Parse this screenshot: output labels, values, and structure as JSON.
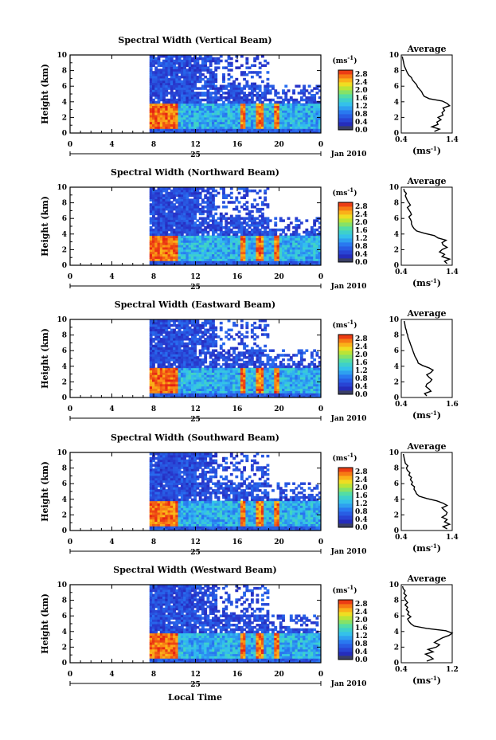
{
  "figure": {
    "bottom_xlabel": "Local Time",
    "chart_data": [
      {
        "type": "heatmap",
        "title": "Spectral Width (Vertical Beam)",
        "ylabel": "Height (km)",
        "y_ticks": [
          "0",
          "2",
          "4",
          "6",
          "8",
          "10"
        ],
        "x_ticks": [
          "0",
          "4",
          "8",
          "12",
          "16",
          "20",
          "0"
        ],
        "date_day": "25",
        "date_month": "Jan 2010",
        "colorbar_unit": "(ms-1)",
        "colorbar_ticks": [
          "0.0",
          "0.4",
          "0.8",
          "1.2",
          "1.6",
          "2.0",
          "2.4",
          "2.8"
        ],
        "colorbar_range": [
          0.0,
          3.0
        ],
        "avg_title": "Average",
        "avg_xlabel": "(ms-1)",
        "avg_xticks": [
          "0.4",
          "1.4"
        ],
        "avg_xlim": [
          0.4,
          1.4
        ],
        "avg_height": [
          0.2,
          0.5,
          0.8,
          1.1,
          1.4,
          1.7,
          2.0,
          2.3,
          2.6,
          2.9,
          3.2,
          3.5,
          3.8,
          4.1,
          4.4,
          4.7,
          5.0,
          5.3,
          5.6,
          5.9,
          6.2,
          6.5,
          6.8,
          7.1,
          7.4,
          7.7,
          8.0,
          8.3,
          8.6,
          8.9,
          9.2,
          9.5,
          9.8
        ],
        "avg_width": [
          1.05,
          1.15,
          1.0,
          1.12,
          1.1,
          1.18,
          1.12,
          1.22,
          1.2,
          1.25,
          1.22,
          1.35,
          1.3,
          1.2,
          0.95,
          0.85,
          0.82,
          0.8,
          0.76,
          0.72,
          0.7,
          0.66,
          0.62,
          0.6,
          0.55,
          0.52,
          0.5,
          0.48,
          0.46,
          0.45,
          0.44,
          0.43,
          0.42
        ]
      },
      {
        "type": "heatmap",
        "title": "Spectral Width (Northward Beam)",
        "ylabel": "Height (km)",
        "y_ticks": [
          "0",
          "2",
          "4",
          "6",
          "8",
          "10"
        ],
        "x_ticks": [
          "0",
          "4",
          "8",
          "12",
          "16",
          "20",
          "0"
        ],
        "date_day": "25",
        "date_month": "Jan 2010",
        "colorbar_unit": "(ms-1)",
        "colorbar_ticks": [
          "0.0",
          "0.4",
          "0.8",
          "1.2",
          "1.6",
          "2.0",
          "2.4",
          "2.8"
        ],
        "colorbar_range": [
          0.0,
          3.0
        ],
        "avg_title": "Average",
        "avg_xlabel": "(ms-1)",
        "avg_xticks": [
          "0.4",
          "1.4"
        ],
        "avg_xlim": [
          0.4,
          1.4
        ],
        "avg_height": [
          0.2,
          0.5,
          0.8,
          1.1,
          1.4,
          1.7,
          2.0,
          2.3,
          2.6,
          2.9,
          3.2,
          3.5,
          3.8,
          4.1,
          4.4,
          4.7,
          5.0,
          5.3,
          5.6,
          5.9,
          6.2,
          6.5,
          6.8,
          7.1,
          7.4,
          7.7,
          8.0,
          8.3,
          8.6,
          8.9,
          9.2,
          9.5,
          9.8
        ],
        "avg_width": [
          1.3,
          1.25,
          1.35,
          1.2,
          1.25,
          1.15,
          1.2,
          1.3,
          1.22,
          1.2,
          1.28,
          1.12,
          1.05,
          0.85,
          0.7,
          0.65,
          0.62,
          0.6,
          0.6,
          0.58,
          0.55,
          0.6,
          0.58,
          0.55,
          0.52,
          0.58,
          0.55,
          0.52,
          0.5,
          0.48,
          0.5,
          0.46,
          0.45
        ]
      },
      {
        "type": "heatmap",
        "title": "Spectral Width (Eastward Beam)",
        "ylabel": "Height (km)",
        "y_ticks": [
          "0",
          "2",
          "4",
          "6",
          "8",
          "10"
        ],
        "x_ticks": [
          "0",
          "4",
          "8",
          "12",
          "16",
          "20",
          "0"
        ],
        "date_day": "25",
        "date_month": "Jan 2010",
        "colorbar_unit": "(ms-1)",
        "colorbar_ticks": [
          "0.0",
          "0.4",
          "0.8",
          "1.2",
          "1.6",
          "2.0",
          "2.4",
          "2.8"
        ],
        "colorbar_range": [
          0.0,
          3.0
        ],
        "avg_title": "Average",
        "avg_xlabel": "(ms-1)",
        "avg_xticks": [
          "0.4",
          "1.6"
        ],
        "avg_xlim": [
          0.4,
          1.6
        ],
        "avg_height": [
          0.2,
          0.5,
          0.8,
          1.1,
          1.4,
          1.7,
          2.0,
          2.3,
          2.6,
          2.9,
          3.2,
          3.5,
          3.8,
          4.1,
          4.4,
          4.7,
          5.0,
          5.3,
          5.6,
          5.9,
          6.2,
          6.5,
          6.8,
          7.1,
          7.4,
          7.7,
          8.0,
          8.3,
          8.6,
          8.9,
          9.2,
          9.5,
          9.8
        ],
        "avg_width": [
          1.0,
          0.95,
          1.1,
          1.05,
          0.98,
          1.0,
          1.08,
          1.12,
          1.05,
          1.0,
          1.1,
          1.15,
          1.05,
          0.9,
          0.8,
          0.78,
          0.75,
          0.72,
          0.7,
          0.68,
          0.66,
          0.64,
          0.62,
          0.6,
          0.58,
          0.56,
          0.55,
          0.53,
          0.52,
          0.5,
          0.49,
          0.48,
          0.47
        ]
      },
      {
        "type": "heatmap",
        "title": "Spectral Width (Southward Beam)",
        "ylabel": "Height (km)",
        "y_ticks": [
          "0",
          "2",
          "4",
          "6",
          "8",
          "10"
        ],
        "x_ticks": [
          "0",
          "4",
          "8",
          "12",
          "16",
          "20",
          "0"
        ],
        "date_day": "25",
        "date_month": "Jan 2010",
        "colorbar_unit": "(ms-1)",
        "colorbar_ticks": [
          "0.0",
          "0.4",
          "0.8",
          "1.2",
          "1.6",
          "2.0",
          "2.4",
          "2.8"
        ],
        "colorbar_range": [
          0.0,
          3.0
        ],
        "avg_title": "Average",
        "avg_xlabel": "(ms-1)",
        "avg_xticks": [
          "0.4",
          "1.4"
        ],
        "avg_xlim": [
          0.4,
          1.4
        ],
        "avg_height": [
          0.2,
          0.5,
          0.8,
          1.1,
          1.4,
          1.7,
          2.0,
          2.3,
          2.6,
          2.9,
          3.2,
          3.5,
          3.8,
          4.1,
          4.4,
          4.7,
          5.0,
          5.3,
          5.6,
          5.9,
          6.2,
          6.5,
          6.8,
          7.1,
          7.4,
          7.7,
          8.0,
          8.3,
          8.6,
          8.9,
          9.2,
          9.5,
          9.8
        ],
        "avg_width": [
          1.3,
          1.22,
          1.35,
          1.25,
          1.3,
          1.2,
          1.28,
          1.3,
          1.25,
          1.2,
          1.3,
          1.22,
          1.1,
          0.9,
          0.75,
          0.7,
          0.68,
          0.65,
          0.66,
          0.6,
          0.62,
          0.58,
          0.6,
          0.55,
          0.57,
          0.52,
          0.5,
          0.53,
          0.48,
          0.47,
          0.46,
          0.45,
          0.44
        ]
      },
      {
        "type": "heatmap",
        "title": "Spectral Width (Westward Beam)",
        "ylabel": "Height (km)",
        "y_ticks": [
          "0",
          "2",
          "4",
          "6",
          "8",
          "10"
        ],
        "x_ticks": [
          "0",
          "4",
          "8",
          "12",
          "16",
          "20",
          "0"
        ],
        "date_day": "25",
        "date_month": "Jan 2010",
        "colorbar_unit": "(ms-1)",
        "colorbar_ticks": [
          "0.0",
          "0.4",
          "0.8",
          "1.2",
          "1.6",
          "2.0",
          "2.4",
          "2.8"
        ],
        "colorbar_range": [
          0.0,
          3.0
        ],
        "avg_title": "Average",
        "avg_xlabel": "(ms-1)",
        "avg_xticks": [
          "0.4",
          "1.2"
        ],
        "avg_xlim": [
          0.4,
          1.2
        ],
        "avg_height": [
          0.2,
          0.5,
          0.8,
          1.1,
          1.4,
          1.7,
          2.0,
          2.3,
          2.6,
          2.9,
          3.2,
          3.5,
          3.8,
          4.1,
          4.4,
          4.7,
          5.0,
          5.3,
          5.6,
          5.9,
          6.2,
          6.5,
          6.8,
          7.1,
          7.4,
          7.7,
          8.0,
          8.3,
          8.6,
          8.9,
          9.2,
          9.5,
          9.8
        ],
        "avg_width": [
          0.8,
          0.9,
          0.85,
          0.78,
          0.9,
          0.82,
          0.95,
          1.0,
          0.92,
          0.98,
          1.05,
          1.15,
          1.2,
          1.1,
          0.8,
          0.6,
          0.55,
          0.52,
          0.5,
          0.55,
          0.5,
          0.52,
          0.48,
          0.5,
          0.46,
          0.5,
          0.47,
          0.45,
          0.48,
          0.44,
          0.46,
          0.43,
          0.42
        ]
      }
    ]
  }
}
